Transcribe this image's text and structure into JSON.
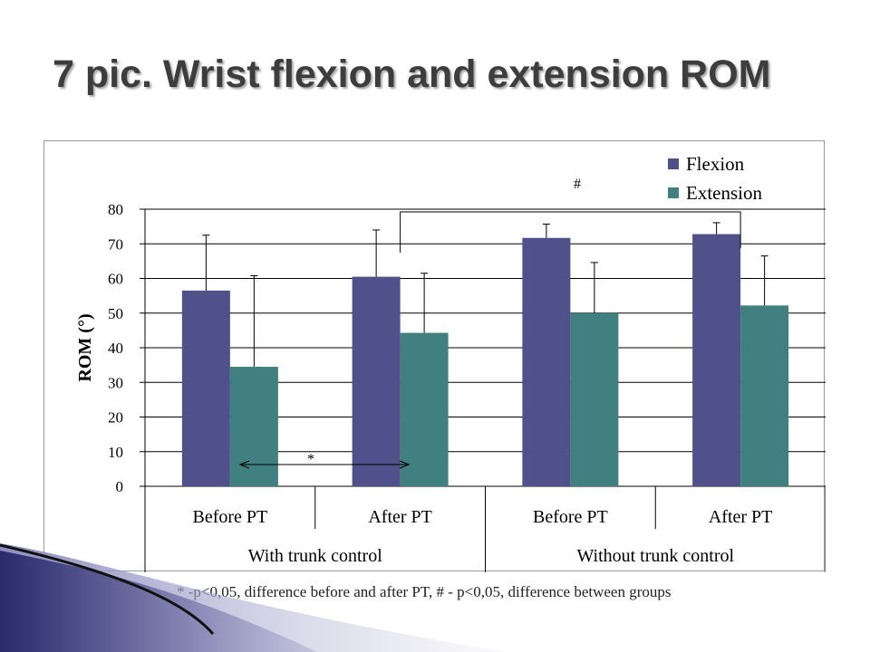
{
  "slide": {
    "title": "7 pic. Wrist flexion and extension ROM",
    "footnote": "* -p<0,05, difference before and after PT,  # - p<0,05, difference between groups"
  },
  "chart_data": {
    "type": "bar",
    "title": "",
    "xlabel": "",
    "ylabel": "ROM (°)",
    "ylim": [
      0,
      80
    ],
    "yticks": [
      0,
      10,
      20,
      30,
      40,
      50,
      60,
      70,
      80
    ],
    "grid": true,
    "legend_position": "top-right",
    "categories": [
      "Before PT",
      "After PT",
      "Before PT",
      "After PT"
    ],
    "groups": [
      {
        "label": "With trunk control",
        "categories": [
          0,
          1
        ]
      },
      {
        "label": "Without trunk control",
        "categories": [
          2,
          3
        ]
      }
    ],
    "series": [
      {
        "name": "Flexion",
        "color": "#50508a",
        "values": [
          56.5,
          60.5,
          71.7,
          72.8
        ],
        "errors": [
          16,
          13.5,
          4,
          3.3
        ]
      },
      {
        "name": "Extension",
        "color": "#408080",
        "values": [
          34.5,
          44.3,
          50,
          52.2
        ],
        "errors": [
          26.3,
          17.2,
          14.6,
          14.3
        ]
      }
    ],
    "annotations": [
      {
        "text": "*",
        "meaning": "before vs after PT"
      },
      {
        "text": "#",
        "meaning": "between groups"
      }
    ]
  }
}
